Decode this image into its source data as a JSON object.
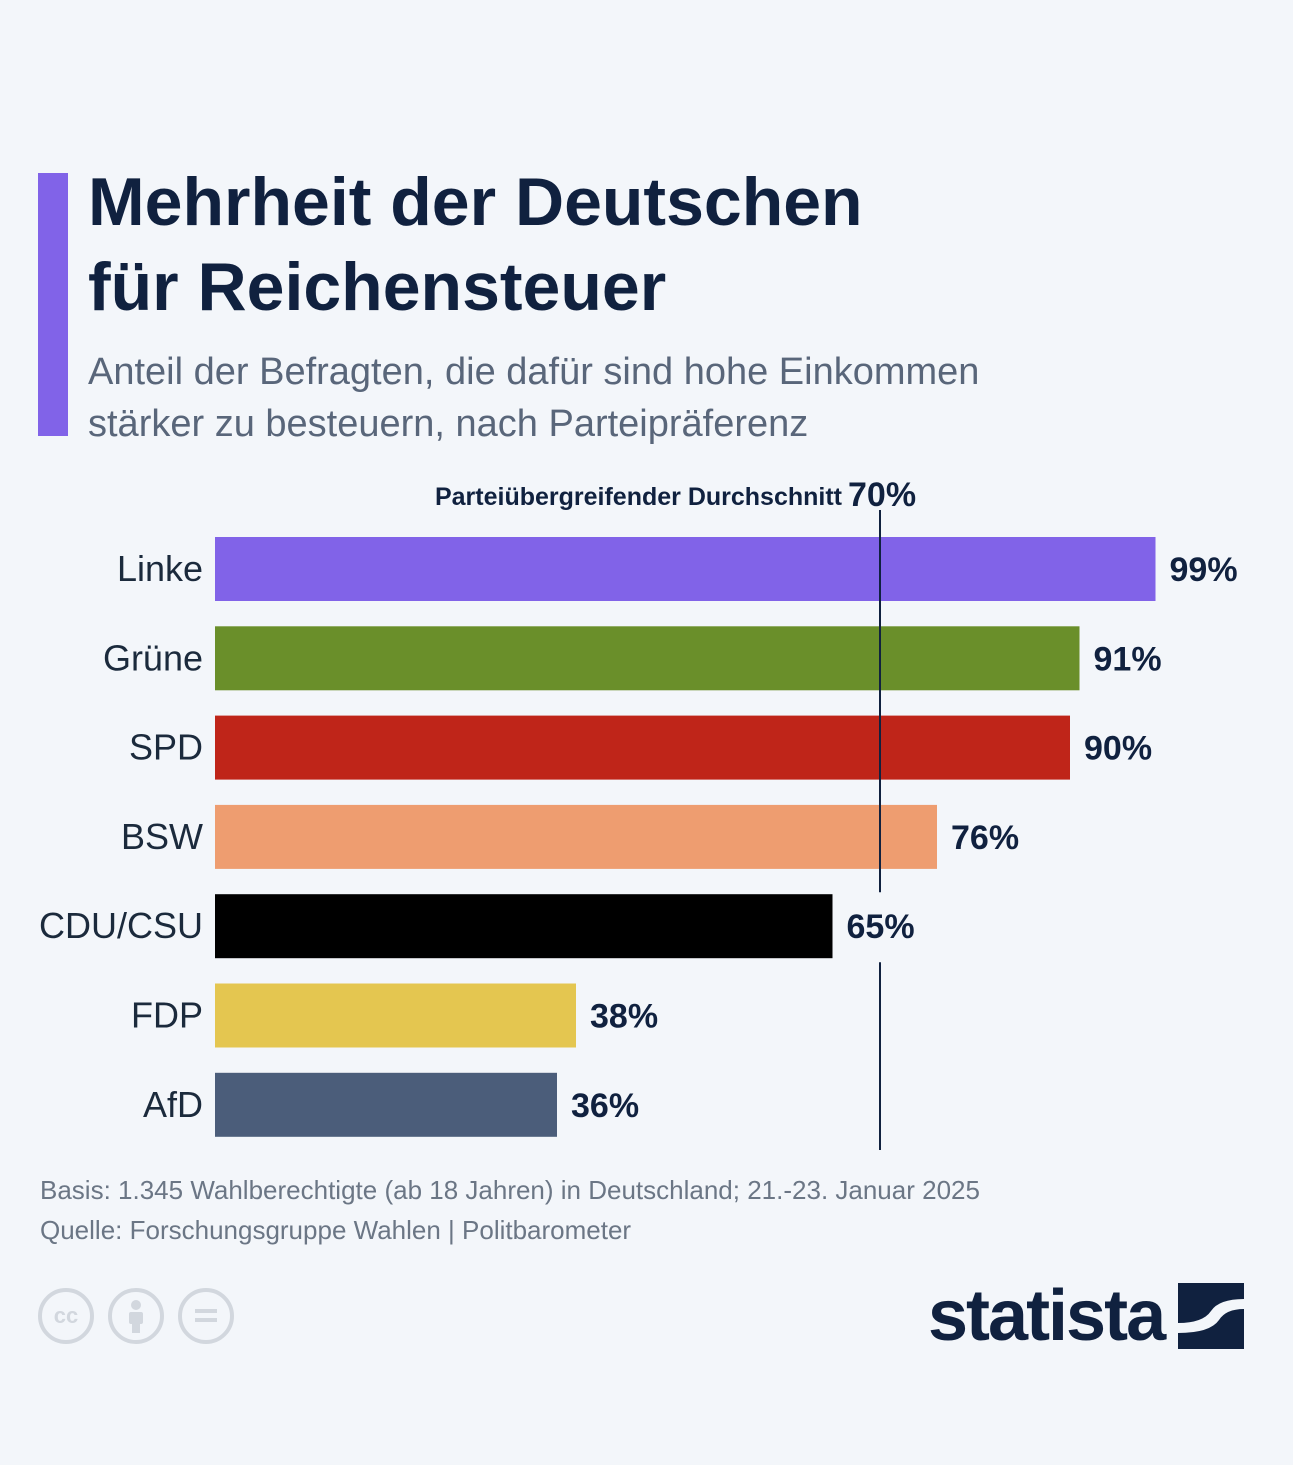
{
  "header": {
    "title_line1": "Mehrheit der Deutschen",
    "title_line2": "für Reichensteuer",
    "subtitle_line1": "Anteil der Befragten, die dafür sind hohe Einkommen",
    "subtitle_line2": "stärker zu besteuern, nach Parteipräferenz"
  },
  "chart_data": {
    "type": "bar",
    "orientation": "horizontal",
    "title": "Mehrheit der Deutschen für Reichensteuer",
    "subtitle": "Anteil der Befragten, die dafür sind hohe Einkommen stärker zu besteuern, nach Parteipräferenz",
    "categories": [
      "Linke",
      "Grüne",
      "SPD",
      "BSW",
      "CDU/CSU",
      "FDP",
      "AfD"
    ],
    "values": [
      99,
      91,
      90,
      76,
      65,
      38,
      36
    ],
    "value_labels": [
      "99%",
      "91%",
      "90%",
      "76%",
      "65%",
      "38%",
      "36%"
    ],
    "colors": [
      "#8163e8",
      "#6a8f2a",
      "#bf2519",
      "#ee9d70",
      "#000000",
      "#e4c650",
      "#4b5d7a"
    ],
    "reference_line": {
      "label": "Parteiübergreifender Durchschnitt",
      "value": 70,
      "value_label": "70%"
    },
    "xlim": [
      0,
      100
    ],
    "grid": false,
    "xlabel": "",
    "ylabel": ""
  },
  "footer": {
    "basis": "Basis: 1.345 Wahlberechtigte (ab 18 Jahren) in Deutschland; 21.-23. Januar 2025",
    "source": "Quelle: Forschungsgruppe Wahlen | Politbarometer"
  },
  "license_icons": [
    "cc-icon",
    "person-icon",
    "equals-icon"
  ],
  "logo": {
    "text": "statista"
  }
}
